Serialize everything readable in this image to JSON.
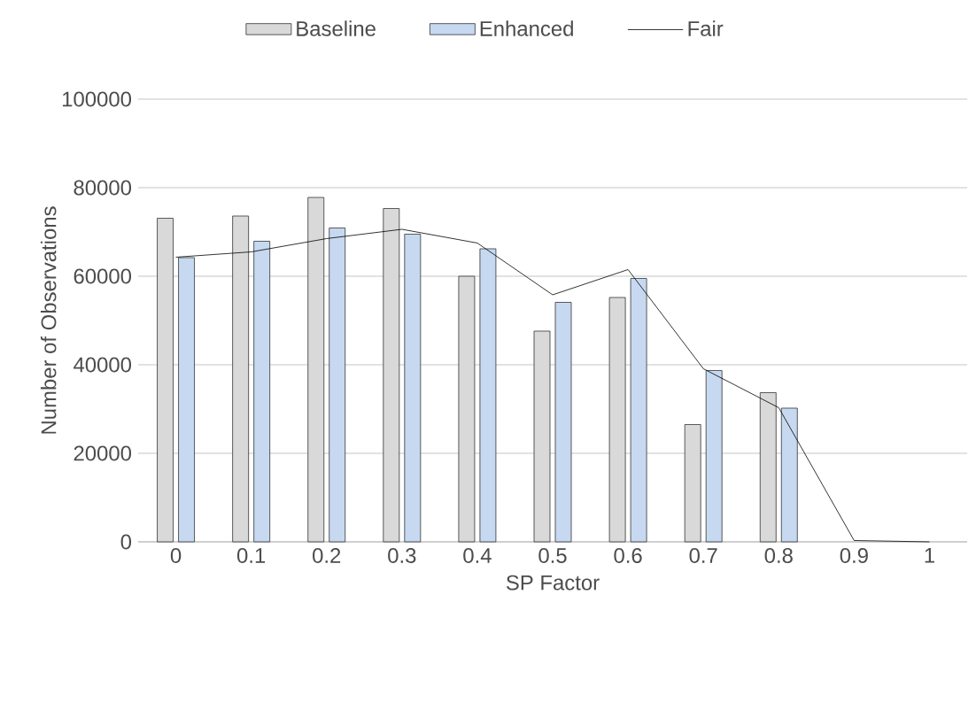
{
  "chart_data": {
    "type": "bar",
    "xlabel": "SP Factor",
    "ylabel": "Number of Observations",
    "categories": [
      "0",
      "0.1",
      "0.2",
      "0.3",
      "0.4",
      "0.5",
      "0.6",
      "0.7",
      "0.8",
      "0.9",
      "1"
    ],
    "series": [
      {
        "name": "Baseline",
        "color": "#d9d9d9",
        "values": [
          73100,
          73600,
          77800,
          75300,
          60000,
          47600,
          55200,
          26500,
          33700,
          null,
          null
        ]
      },
      {
        "name": "Enhanced",
        "color": "#c6d9f0",
        "values": [
          64200,
          67900,
          70900,
          69500,
          66200,
          54100,
          59500,
          38700,
          30200,
          null,
          null
        ]
      },
      {
        "name": "Fair",
        "type": "line",
        "color": "#000000",
        "values": [
          64300,
          65500,
          68500,
          70600,
          67500,
          55800,
          61500,
          39100,
          30300,
          300,
          0
        ]
      }
    ],
    "ylim": [
      0,
      100000
    ],
    "yticks": [
      0,
      20000,
      40000,
      60000,
      80000,
      100000
    ],
    "grid": "y",
    "legend": "top"
  }
}
